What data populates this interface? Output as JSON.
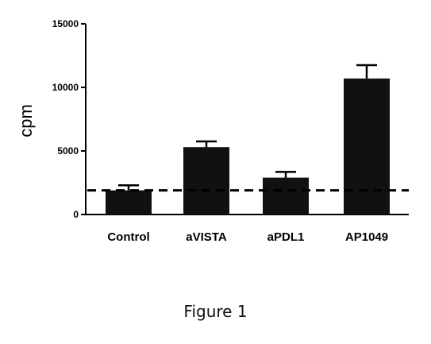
{
  "chart_data": {
    "type": "bar",
    "categories": [
      "Control",
      "aVISTA",
      "aPDL1",
      "AP1049"
    ],
    "values": [
      1900,
      5300,
      2900,
      10700
    ],
    "error_upper": [
      2300,
      5750,
      3350,
      11750
    ],
    "ylabel": "cpm",
    "xlabel": "",
    "ylim": [
      0,
      15000
    ],
    "yticks": [
      0,
      5000,
      10000,
      15000
    ],
    "ytick_labels": [
      "0",
      "5000",
      "10000",
      "15000"
    ],
    "reference_line": {
      "y": 1900,
      "style": "dashed"
    },
    "bar_color": "#111111",
    "grid": false
  },
  "figure": {
    "caption": "Figure 1"
  }
}
